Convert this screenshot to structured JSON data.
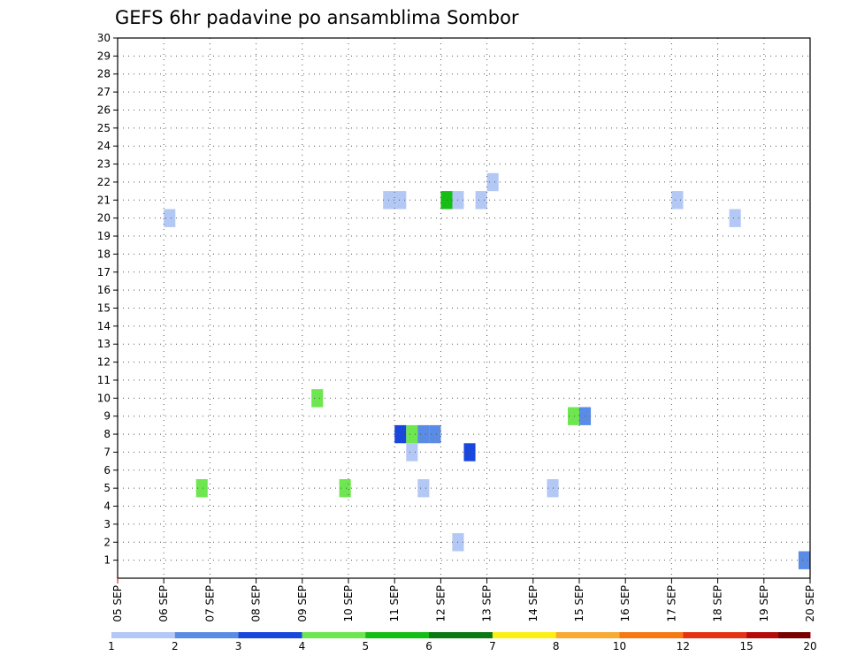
{
  "chart_data": {
    "type": "heatmap",
    "title": "GEFS 6hr padavine po ansamblima Sombor",
    "xlabel": "",
    "ylabel": "",
    "x_tick_labels": [
      "05 SEP",
      "06 SEP",
      "07 SEP",
      "08 SEP",
      "09 SEP",
      "10 SEP",
      "11 SEP",
      "12 SEP",
      "13 SEP",
      "14 SEP",
      "15 SEP",
      "16 SEP",
      "17 SEP",
      "18 SEP",
      "19 SEP",
      "20 SEP"
    ],
    "y_tick_labels": [
      "1",
      "2",
      "3",
      "4",
      "5",
      "6",
      "7",
      "8",
      "9",
      "10",
      "11",
      "12",
      "13",
      "14",
      "15",
      "16",
      "17",
      "18",
      "19",
      "20",
      "21",
      "22",
      "23",
      "24",
      "25",
      "26",
      "27",
      "28",
      "29",
      "30"
    ],
    "xlim": [
      0,
      15
    ],
    "ylim": [
      0,
      30
    ],
    "grid": true,
    "colorbar": {
      "placement": "bottom",
      "tick_labels": [
        "1",
        "2",
        "3",
        "4",
        "5",
        "6",
        "7",
        "8",
        "10",
        "12",
        "15",
        "20"
      ],
      "colors": [
        "#b4c8f5",
        "#5a8ce6",
        "#1946dc",
        "#6ee650",
        "#14be14",
        "#0a7814",
        "#faf014",
        "#faaa32",
        "#f57814",
        "#e63214",
        "#b40a0a",
        "#780000"
      ]
    },
    "cells": [
      {
        "day": 6.5,
        "member": 5,
        "class": 1
      },
      {
        "day": 9.3,
        "member": 5,
        "class": 1
      },
      {
        "day": 4.8,
        "member": 5,
        "class": 4
      },
      {
        "day": 4.2,
        "member": 10,
        "class": 4
      },
      {
        "day": 1.7,
        "member": 5,
        "class": 4
      },
      {
        "day": 6.25,
        "member": 7,
        "class": 1
      },
      {
        "day": 7.5,
        "member": 7,
        "class": 3
      },
      {
        "day": 6.0,
        "member": 8,
        "class": 3
      },
      {
        "day": 6.25,
        "member": 8,
        "class": 4
      },
      {
        "day": 6.5,
        "member": 8,
        "class": 2
      },
      {
        "day": 6.75,
        "member": 8,
        "class": 2
      },
      {
        "day": 1.0,
        "member": 20,
        "class": 1
      },
      {
        "day": 13.25,
        "member": 20,
        "class": 1
      },
      {
        "day": 7.75,
        "member": 21,
        "class": 1
      },
      {
        "day": 12.0,
        "member": 21,
        "class": 1
      },
      {
        "day": 7.25,
        "member": 21,
        "class": 1
      },
      {
        "day": 8.0,
        "member": 22,
        "class": 1
      },
      {
        "day": 5.75,
        "member": 21,
        "class": 1
      },
      {
        "day": 6.0,
        "member": 21,
        "class": 1
      },
      {
        "day": 7.0,
        "member": 21,
        "class": 5
      },
      {
        "day": 9.75,
        "member": 9,
        "class": 4
      },
      {
        "day": 10.0,
        "member": 9,
        "class": 2
      },
      {
        "day": 14.75,
        "member": 1,
        "class": 2
      },
      {
        "day": 7.25,
        "member": 2,
        "class": 1
      }
    ]
  }
}
